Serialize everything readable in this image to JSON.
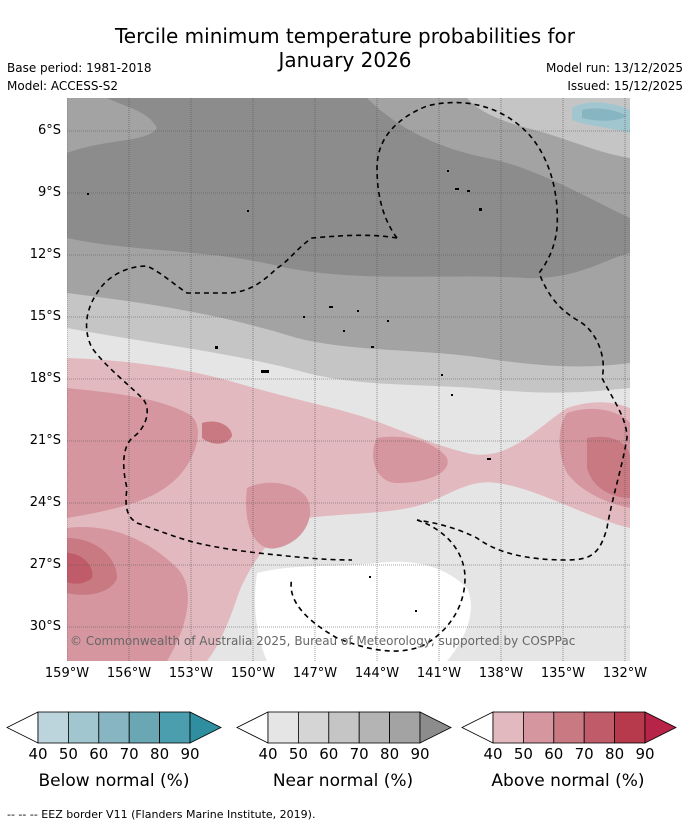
{
  "header": {
    "title_line1": "Tercile minimum temperature probabilities for",
    "title_line2": "January 2026",
    "base_period": "Base period: 1981-2018",
    "model": "Model: ACCESS-S2",
    "model_run": "Model run: 13/12/2025",
    "issued": "Issued: 15/12/2025"
  },
  "map": {
    "lat_labels": [
      "6°S",
      "9°S",
      "12°S",
      "15°S",
      "18°S",
      "21°S",
      "24°S",
      "27°S",
      "30°S"
    ],
    "lon_labels": [
      "159°W",
      "156°W",
      "153°W",
      "150°W",
      "147°W",
      "144°W",
      "141°W",
      "138°W",
      "135°W",
      "132°W"
    ],
    "copyright": "© Commonwealth of Australia 2025, Bureau of Meteorology, supported by COSPPac"
  },
  "legends": [
    {
      "title": "Below normal (%)",
      "ticks": [
        "40",
        "50",
        "60",
        "70",
        "80",
        "90"
      ],
      "colors": [
        "#ffffff",
        "#bcd5dc",
        "#a2c6cf",
        "#87b6c2",
        "#6aa7b5",
        "#4a9eae",
        "#2f8fa0"
      ]
    },
    {
      "title": "Near normal (%)",
      "ticks": [
        "40",
        "50",
        "60",
        "70",
        "80",
        "90"
      ],
      "colors": [
        "#ffffff",
        "#e5e5e5",
        "#d5d5d5",
        "#c5c5c5",
        "#b4b4b4",
        "#a3a3a3",
        "#8c8c8c"
      ]
    },
    {
      "title": "Above normal (%)",
      "ticks": [
        "40",
        "50",
        "60",
        "70",
        "80",
        "90"
      ],
      "colors": [
        "#ffffff",
        "#e2b9bf",
        "#d5969f",
        "#c97981",
        "#c05c69",
        "#b73a4c",
        "#b82447"
      ]
    }
  ],
  "footer": "--  --  -- EEZ border V11 (Flanders Marine Institute, 2019)."
}
